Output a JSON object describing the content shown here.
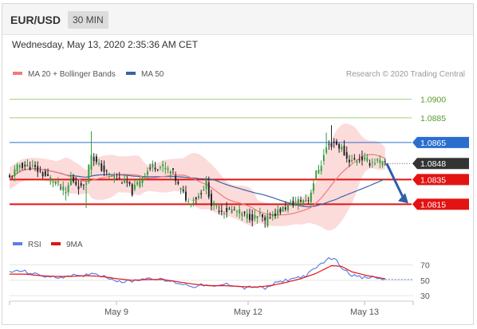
{
  "header": {
    "pair": "EUR/USD",
    "interval": "30 MIN",
    "datetime": "Wednesday, May 13, 2020 2:35:36 AM CET"
  },
  "legend": {
    "ma20": "MA 20 + Bollinger Bands",
    "ma50": "MA 50",
    "credit": "Research © 2020 Trading Central"
  },
  "colors": {
    "up": "#2e9e3a",
    "down": "#222222",
    "ma20": "#ef7c7c",
    "bollinger_fill": "#fbd5d5",
    "ma50": "#3a62a8",
    "resistance_green": "#9fcf7a",
    "blue_level": "#2a6fcd",
    "support": "#e31313",
    "last_price": "#333333",
    "rsi": "#5c7fe3",
    "rsi_ma": "#e31313",
    "arrow": "#2d5fa6"
  },
  "chart_data": [
    {
      "type": "line",
      "subtype": "candlestick",
      "instrument": "EUR/USD",
      "ylim": [
        1.0792,
        1.0912
      ],
      "x_tick_labels": [
        "May 9",
        "May 12",
        "May 13"
      ],
      "price_levels": [
        {
          "value": 1.09,
          "label": "1.0900",
          "role": "resistance"
        },
        {
          "value": 1.0885,
          "label": "1.0885",
          "role": "resistance"
        },
        {
          "value": 1.0865,
          "label": "1.0865",
          "role": "resistance"
        },
        {
          "value": 1.0848,
          "label": "1.0848",
          "role": "last"
        },
        {
          "value": 1.0835,
          "label": "1.0835",
          "role": "pivot"
        },
        {
          "value": 1.0815,
          "label": "1.0815",
          "role": "support"
        }
      ],
      "close_path": [
        [
          0,
          1.0836
        ],
        [
          4,
          1.0847
        ],
        [
          9,
          1.0845
        ],
        [
          14,
          1.0838
        ],
        [
          18,
          1.0833
        ],
        [
          22,
          1.0824
        ],
        [
          24,
          1.0836
        ],
        [
          28,
          1.0828
        ],
        [
          30,
          1.0835
        ],
        [
          32,
          1.0856
        ],
        [
          34,
          1.0848
        ],
        [
          38,
          1.084
        ],
        [
          42,
          1.0836
        ],
        [
          46,
          1.0832
        ],
        [
          48,
          1.0825
        ],
        [
          52,
          1.0838
        ],
        [
          56,
          1.0846
        ],
        [
          60,
          1.0845
        ],
        [
          64,
          1.084
        ],
        [
          66,
          1.083
        ],
        [
          70,
          1.0817
        ],
        [
          74,
          1.0822
        ],
        [
          77,
          1.0832
        ],
        [
          79,
          1.0815
        ],
        [
          83,
          1.081
        ],
        [
          88,
          1.081
        ],
        [
          92,
          1.0806
        ],
        [
          96,
          1.0804
        ],
        [
          98,
          1.0806
        ],
        [
          100,
          1.08
        ],
        [
          102,
          1.0806
        ],
        [
          106,
          1.081
        ],
        [
          110,
          1.0815
        ],
        [
          114,
          1.0818
        ],
        [
          117,
          1.0819
        ],
        [
          120,
          1.084
        ],
        [
          122,
          1.0848
        ],
        [
          124,
          1.0861
        ],
        [
          127,
          1.0865
        ],
        [
          130,
          1.086
        ],
        [
          132,
          1.0852
        ],
        [
          134,
          1.085
        ],
        [
          138,
          1.0852
        ],
        [
          141,
          1.0849
        ],
        [
          144,
          1.085
        ],
        [
          147,
          1.0847
        ]
      ],
      "projection": {
        "from": 1.0848,
        "to": 1.0815
      },
      "x_range": [
        0,
        158
      ]
    },
    {
      "type": "line",
      "series": [
        {
          "name": "RSI"
        },
        {
          "name": "9MA"
        }
      ],
      "ylim": [
        25,
        85
      ],
      "y_ticks": [
        70,
        50,
        30
      ],
      "rsi": [
        [
          0,
          61
        ],
        [
          5,
          62
        ],
        [
          10,
          58
        ],
        [
          16,
          54
        ],
        [
          20,
          54
        ],
        [
          24,
          57
        ],
        [
          28,
          54
        ],
        [
          32,
          60
        ],
        [
          36,
          56
        ],
        [
          40,
          52
        ],
        [
          44,
          48
        ],
        [
          48,
          49
        ],
        [
          52,
          52
        ],
        [
          56,
          53
        ],
        [
          60,
          50
        ],
        [
          64,
          48
        ],
        [
          68,
          45
        ],
        [
          72,
          42
        ],
        [
          76,
          44
        ],
        [
          80,
          41
        ],
        [
          84,
          45
        ],
        [
          88,
          44
        ],
        [
          92,
          40
        ],
        [
          96,
          42
        ],
        [
          100,
          39
        ],
        [
          104,
          46
        ],
        [
          108,
          50
        ],
        [
          112,
          53
        ],
        [
          116,
          56
        ],
        [
          120,
          66
        ],
        [
          124,
          77
        ],
        [
          127,
          79
        ],
        [
          130,
          67
        ],
        [
          134,
          57
        ],
        [
          138,
          53
        ],
        [
          142,
          54
        ],
        [
          147,
          51
        ]
      ],
      "rsi_ma": [
        [
          0,
          58
        ],
        [
          6,
          58
        ],
        [
          12,
          56
        ],
        [
          18,
          55
        ],
        [
          24,
          55
        ],
        [
          30,
          56
        ],
        [
          36,
          55
        ],
        [
          42,
          52
        ],
        [
          48,
          50
        ],
        [
          54,
          51
        ],
        [
          60,
          51
        ],
        [
          66,
          48
        ],
        [
          72,
          45
        ],
        [
          78,
          43
        ],
        [
          84,
          43
        ],
        [
          90,
          42
        ],
        [
          96,
          41
        ],
        [
          102,
          43
        ],
        [
          108,
          47
        ],
        [
          114,
          52
        ],
        [
          120,
          59
        ],
        [
          126,
          69
        ],
        [
          130,
          68
        ],
        [
          134,
          61
        ],
        [
          140,
          56
        ],
        [
          147,
          52
        ]
      ],
      "x_range": [
        0,
        158
      ]
    }
  ]
}
